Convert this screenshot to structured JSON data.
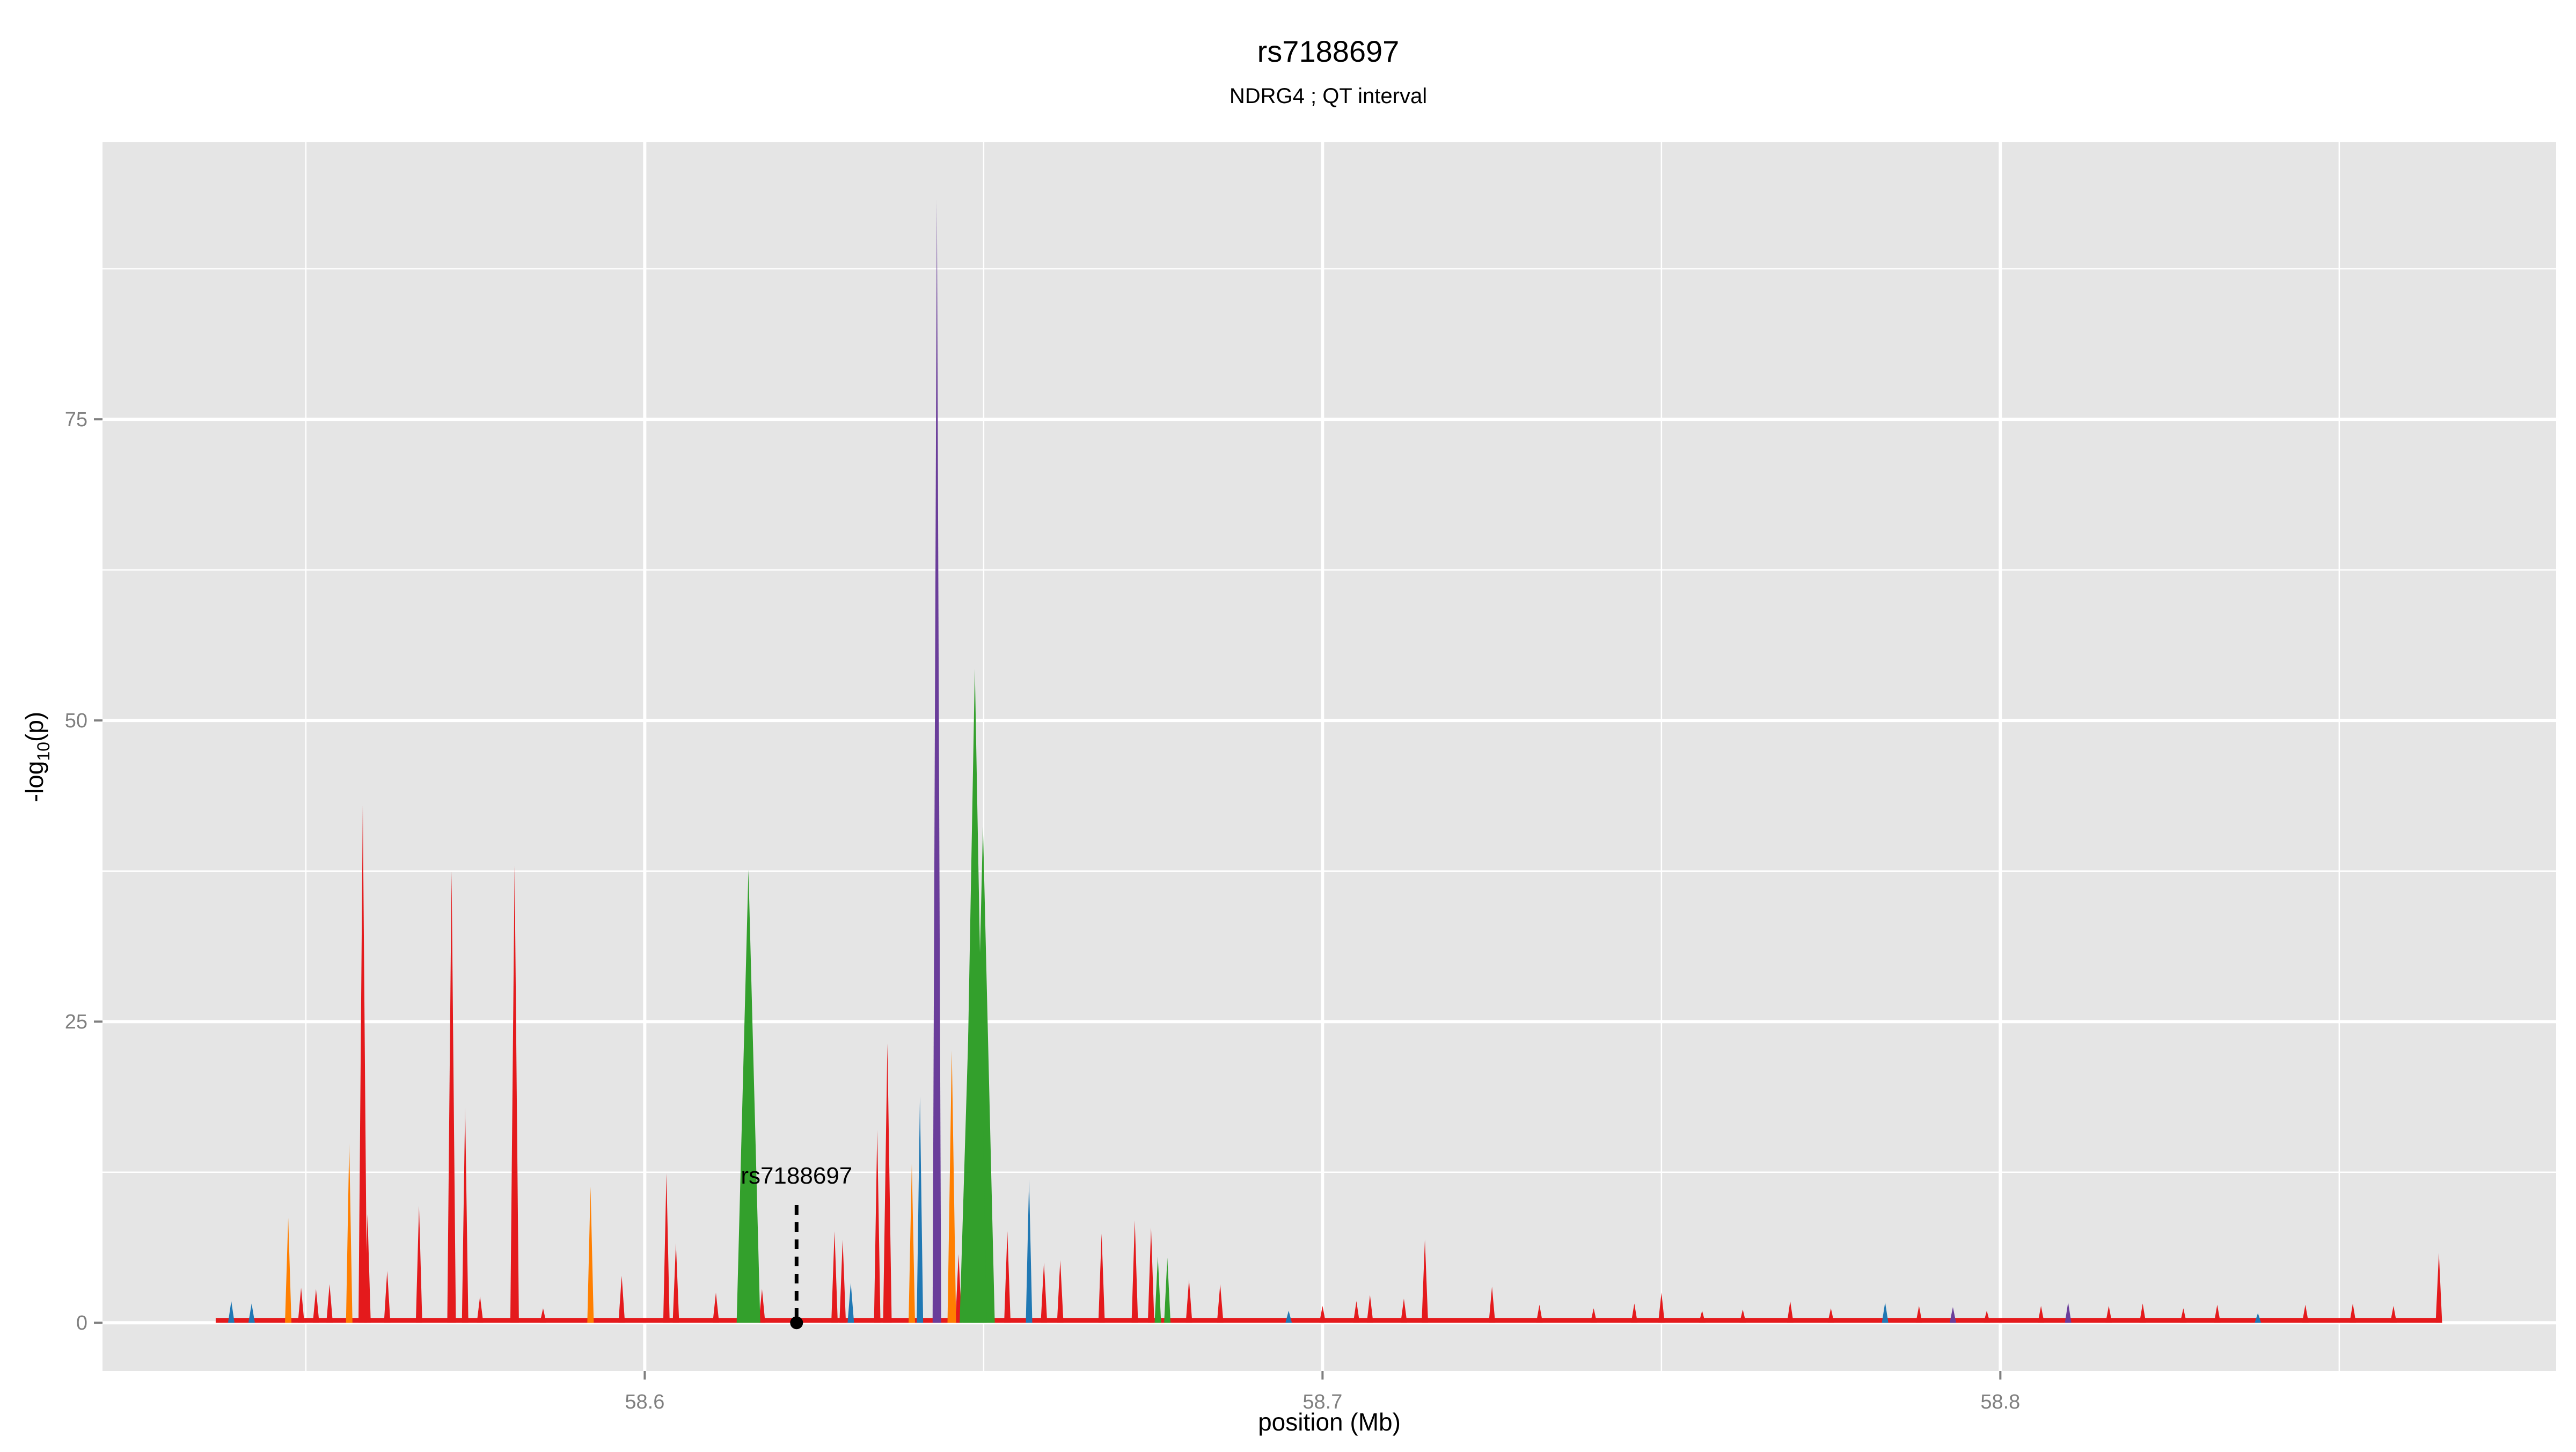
{
  "chart_data": {
    "type": "area",
    "title": "rs7188697",
    "subtitle": "NDRG4 ; QT interval",
    "xlabel": "position (Mb)",
    "ylabel_main": "-log",
    "ylabel_sub": "10",
    "ylabel_tail": "(p)",
    "xlim": [
      58.52,
      58.882
    ],
    "ylim": [
      -4,
      98
    ],
    "xticks": [
      58.6,
      58.7,
      58.8
    ],
    "xtick_labels": [
      "58.6",
      "58.7",
      "58.8"
    ],
    "yticks": [
      0,
      25,
      50,
      75
    ],
    "ytick_labels": [
      "0",
      "25",
      "50",
      "75"
    ],
    "grid": true,
    "background": "#E5E5E5",
    "colors": {
      "red": "#E41A1C",
      "green": "#33A02C",
      "orange": "#FF7F00",
      "blue": "#1F78B4",
      "purple": "#6A3D9A"
    },
    "data_range": [
      58.5367,
      58.865
    ],
    "peaks": [
      {
        "x": 58.539,
        "y": 1.8,
        "c": "blue"
      },
      {
        "x": 58.542,
        "y": 1.6,
        "c": "blue"
      },
      {
        "x": 58.5474,
        "y": 8.7,
        "c": "orange"
      },
      {
        "x": 58.5493,
        "y": 2.9,
        "c": "red"
      },
      {
        "x": 58.5515,
        "y": 2.8,
        "c": "red"
      },
      {
        "x": 58.5535,
        "y": 3.2,
        "c": "red"
      },
      {
        "x": 58.5564,
        "y": 14.9,
        "c": "orange"
      },
      {
        "x": 58.5584,
        "y": 42.9,
        "c": "red"
      },
      {
        "x": 58.5591,
        "y": 9.0,
        "c": "red"
      },
      {
        "x": 58.562,
        "y": 4.3,
        "c": "red"
      },
      {
        "x": 58.5667,
        "y": 9.7,
        "c": "red"
      },
      {
        "x": 58.5715,
        "y": 37.5,
        "c": "red"
      },
      {
        "x": 58.5735,
        "y": 17.9,
        "c": "red"
      },
      {
        "x": 58.5757,
        "y": 2.2,
        "c": "red"
      },
      {
        "x": 58.5808,
        "y": 37.9,
        "c": "red"
      },
      {
        "x": 58.585,
        "y": 1.2,
        "c": "red"
      },
      {
        "x": 58.592,
        "y": 11.3,
        "c": "orange"
      },
      {
        "x": 58.5966,
        "y": 3.9,
        "c": "red"
      },
      {
        "x": 58.6032,
        "y": 12.4,
        "c": "red"
      },
      {
        "x": 58.6046,
        "y": 6.6,
        "c": "red"
      },
      {
        "x": 58.6105,
        "y": 2.5,
        "c": "red"
      },
      {
        "x": 58.6153,
        "y": 37.6,
        "c": "green"
      },
      {
        "x": 58.6173,
        "y": 2.8,
        "c": "red"
      },
      {
        "x": 58.628,
        "y": 7.6,
        "c": "red"
      },
      {
        "x": 58.6292,
        "y": 6.9,
        "c": "red"
      },
      {
        "x": 58.6304,
        "y": 3.3,
        "c": "blue"
      },
      {
        "x": 58.6343,
        "y": 16.0,
        "c": "red"
      },
      {
        "x": 58.6358,
        "y": 23.2,
        "c": "red"
      },
      {
        "x": 58.6394,
        "y": 13.2,
        "c": "orange"
      },
      {
        "x": 58.6406,
        "y": 18.8,
        "c": "blue"
      },
      {
        "x": 58.6431,
        "y": 93.2,
        "c": "purple"
      },
      {
        "x": 58.6453,
        "y": 22.6,
        "c": "orange"
      },
      {
        "x": 58.6463,
        "y": 5.7,
        "c": "red"
      },
      {
        "x": 58.6482,
        "y": 32.5,
        "c": "green"
      },
      {
        "x": 58.6487,
        "y": 54.3,
        "c": "green"
      },
      {
        "x": 58.6499,
        "y": 41.2,
        "c": "green"
      },
      {
        "x": 58.6535,
        "y": 7.6,
        "c": "red"
      },
      {
        "x": 58.6567,
        "y": 11.9,
        "c": "blue"
      },
      {
        "x": 58.6589,
        "y": 5.0,
        "c": "red"
      },
      {
        "x": 58.6613,
        "y": 5.2,
        "c": "red"
      },
      {
        "x": 58.6674,
        "y": 7.4,
        "c": "red"
      },
      {
        "x": 58.6723,
        "y": 8.5,
        "c": "red"
      },
      {
        "x": 58.6747,
        "y": 7.9,
        "c": "red"
      },
      {
        "x": 58.6757,
        "y": 5.5,
        "c": "green"
      },
      {
        "x": 58.6771,
        "y": 5.4,
        "c": "green"
      },
      {
        "x": 58.6803,
        "y": 3.6,
        "c": "red"
      },
      {
        "x": 58.6849,
        "y": 3.2,
        "c": "red"
      },
      {
        "x": 58.695,
        "y": 1.0,
        "c": "blue"
      },
      {
        "x": 58.7,
        "y": 1.4,
        "c": "red"
      },
      {
        "x": 58.705,
        "y": 1.8,
        "c": "red"
      },
      {
        "x": 58.707,
        "y": 2.3,
        "c": "red"
      },
      {
        "x": 58.712,
        "y": 2.0,
        "c": "red"
      },
      {
        "x": 58.7151,
        "y": 6.9,
        "c": "red"
      },
      {
        "x": 58.725,
        "y": 3.0,
        "c": "red"
      },
      {
        "x": 58.732,
        "y": 1.5,
        "c": "red"
      },
      {
        "x": 58.74,
        "y": 1.2,
        "c": "red"
      },
      {
        "x": 58.746,
        "y": 1.6,
        "c": "red"
      },
      {
        "x": 58.75,
        "y": 2.5,
        "c": "red"
      },
      {
        "x": 58.756,
        "y": 1.0,
        "c": "red"
      },
      {
        "x": 58.762,
        "y": 1.1,
        "c": "red"
      },
      {
        "x": 58.769,
        "y": 1.8,
        "c": "red"
      },
      {
        "x": 58.775,
        "y": 1.2,
        "c": "red"
      },
      {
        "x": 58.783,
        "y": 1.7,
        "c": "blue"
      },
      {
        "x": 58.788,
        "y": 1.4,
        "c": "red"
      },
      {
        "x": 58.793,
        "y": 1.3,
        "c": "purple"
      },
      {
        "x": 58.798,
        "y": 1.0,
        "c": "red"
      },
      {
        "x": 58.806,
        "y": 1.4,
        "c": "red"
      },
      {
        "x": 58.81,
        "y": 1.7,
        "c": "purple"
      },
      {
        "x": 58.816,
        "y": 1.4,
        "c": "red"
      },
      {
        "x": 58.821,
        "y": 1.6,
        "c": "red"
      },
      {
        "x": 58.827,
        "y": 1.2,
        "c": "red"
      },
      {
        "x": 58.832,
        "y": 1.5,
        "c": "red"
      },
      {
        "x": 58.838,
        "y": 0.8,
        "c": "blue"
      },
      {
        "x": 58.845,
        "y": 1.5,
        "c": "red"
      },
      {
        "x": 58.852,
        "y": 1.6,
        "c": "red"
      },
      {
        "x": 58.858,
        "y": 1.4,
        "c": "red"
      },
      {
        "x": 58.8647,
        "y": 5.8,
        "c": "red"
      }
    ],
    "annotation": {
      "label": "rs7188697",
      "x": 58.6224,
      "y": 0
    }
  }
}
